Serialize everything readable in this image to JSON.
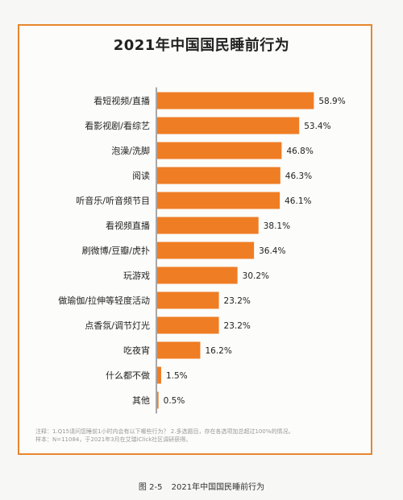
{
  "chart_data": {
    "type": "bar",
    "orientation": "horizontal",
    "title": "2021年中国国民睡前行为",
    "categories": [
      "看短视频/直播",
      "看影视剧/看综艺",
      "泡澡/洗脚",
      "阅读",
      "听音乐/听音频节目",
      "看视频直播",
      "刷微博/豆瓣/虎扑",
      "玩游戏",
      "做瑜伽/拉伸等轻度活动",
      "点香氛/调节灯光",
      "吃夜宵",
      "什么都不做",
      "其他"
    ],
    "values": [
      58.9,
      53.4,
      46.8,
      46.3,
      46.1,
      38.1,
      36.4,
      30.2,
      23.2,
      23.2,
      16.2,
      1.5,
      0.5
    ],
    "value_labels": [
      "58.9%",
      "53.4%",
      "46.8%",
      "46.3%",
      "46.1%",
      "38.1%",
      "36.4%",
      "30.2%",
      "23.2%",
      "23.2%",
      "16.2%",
      "1.5%",
      "0.5%"
    ],
    "xlim": [
      0,
      60
    ],
    "bar_color": "#ef7d24",
    "grid": false,
    "legend": "none"
  },
  "notes": [
    "注释：1.Q15请问您睡前1小时内会有以下哪些行为？ 2.多选题目，存在各选项加总超过100%的情况。",
    "样本：N=11084，于2021年3月在艾瑞iClick社区调研获得。"
  ],
  "caption": {
    "figure_no": "图 2-5",
    "text": "2021年中国国民睡前行为"
  },
  "colors": {
    "frame": "#e7862d",
    "bar": "#ef7d24"
  }
}
